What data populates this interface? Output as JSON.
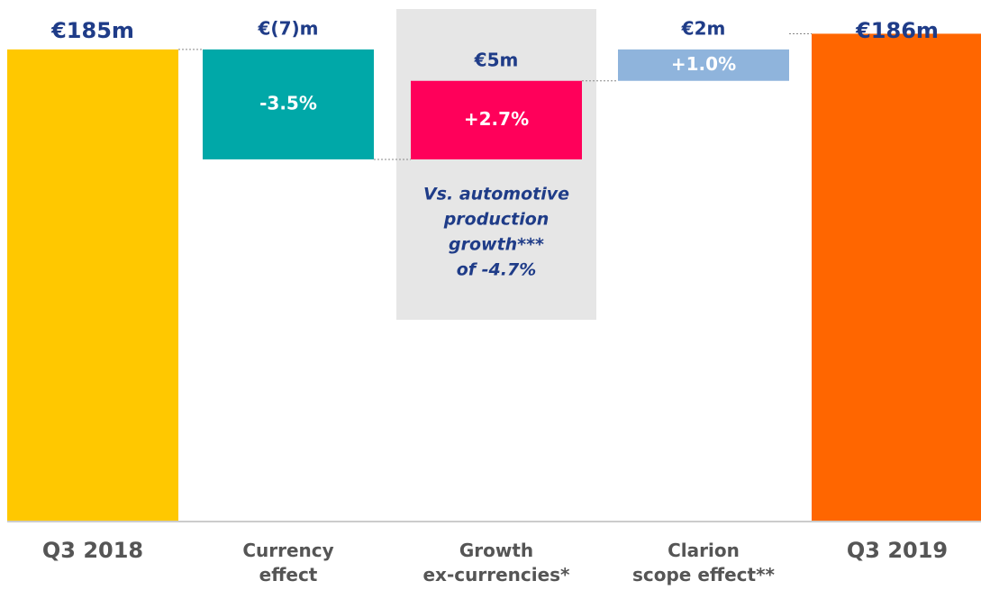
{
  "chart_data": {
    "type": "waterfall",
    "categories": [
      "Q3 2018",
      "Currency\neffect",
      "Growth\nex-currencies*",
      "Clarion\nscope effect**",
      "Q3 2019"
    ],
    "values": [
      185,
      -7,
      5,
      2,
      186
    ],
    "value_labels": [
      "€185m",
      "€(7)m",
      "€5m",
      "€2m",
      "€186m"
    ],
    "change_labels": [
      null,
      "-3.5%",
      "+2.7%",
      "+1.0%",
      null
    ],
    "totals": [
      true,
      false,
      false,
      false,
      true
    ],
    "colors": [
      "#ffc800",
      "#00a8a8",
      "#ff005a",
      "#8fb4dc",
      "#ff6600"
    ],
    "annotation": [
      "Vs. automotive",
      "production",
      "growth***",
      "of -4.7%"
    ],
    "highlight": 2,
    "ylim": [
      155,
      187
    ]
  }
}
